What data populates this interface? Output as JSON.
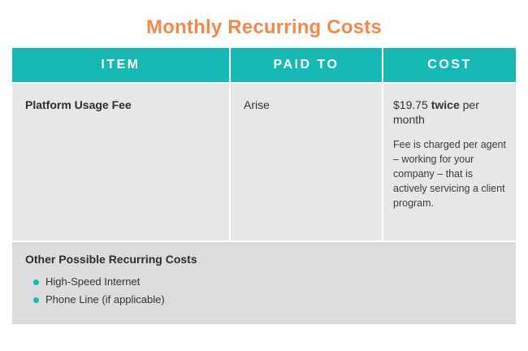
{
  "title": "Monthly Recurring Costs",
  "colors": {
    "accent": "#16b9b4",
    "title": "#f2894a",
    "row_bg": "#e7e7e9",
    "footer_bg": "#dcdcde"
  },
  "table": {
    "headers": [
      "ITEM",
      "PAID TO",
      "COST"
    ],
    "row": {
      "item": "Platform Usage Fee",
      "paid_to": "Arise",
      "cost_amount": "$19.75",
      "cost_emphasis": "twice",
      "cost_suffix": "per month",
      "cost_note": "Fee is charged per agent – working for your company – that is actively servicing a client program."
    }
  },
  "other_costs": {
    "title": "Other Possible Recurring Costs",
    "items": [
      "High-Speed Internet",
      "Phone Line (if applicable)"
    ]
  }
}
